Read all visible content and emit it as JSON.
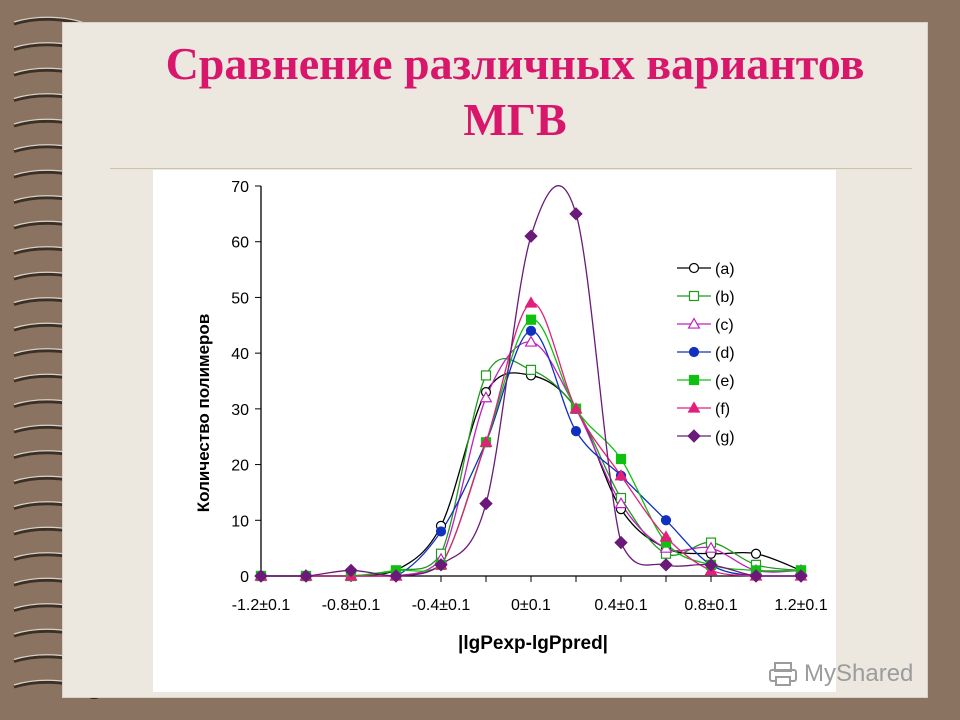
{
  "slide": {
    "title_line1": "Сравнение различных вариантов",
    "title_line2": "МГВ",
    "title_color": "#d8166b",
    "watermark": "MyShared"
  },
  "chart_data": {
    "type": "line",
    "ylabel": "Количество полимеров",
    "xlabel": "|lgPexp-lgPpred|",
    "ylim": [
      0,
      70
    ],
    "y_ticks": [
      0,
      10,
      20,
      30,
      40,
      50,
      60,
      70
    ],
    "x_tick_labels": [
      "-1.2±0.1",
      "-0.8±0.1",
      "-0.4±0.1",
      "0±0.1",
      "0.4±0.1",
      "0.8±0.1",
      "1.2±0.1"
    ],
    "x_tick_values": [
      -1.2,
      -0.8,
      -0.4,
      0,
      0.4,
      0.8,
      1.2
    ],
    "xlim": [
      -1.2,
      1.2
    ],
    "grid": false,
    "legend": "right",
    "x": [
      -1.2,
      -1.0,
      -0.8,
      -0.6,
      -0.4,
      -0.2,
      0,
      0.2,
      0.4,
      0.6,
      0.8,
      1.0,
      1.2
    ],
    "series": [
      {
        "name": "(a)",
        "color": "#000000",
        "marker": "circle",
        "filled": false,
        "values": [
          0,
          0,
          0,
          1,
          9,
          33,
          36,
          30,
          12,
          5,
          4,
          4,
          1
        ]
      },
      {
        "name": "(b)",
        "color": "#1f9a1f",
        "marker": "square",
        "filled": false,
        "values": [
          0,
          0,
          0,
          1,
          4,
          36,
          37,
          30,
          14,
          4,
          6,
          2,
          1
        ]
      },
      {
        "name": "(c)",
        "color": "#c020c0",
        "marker": "triangle",
        "filled": false,
        "values": [
          0,
          0,
          0,
          0,
          3,
          32,
          42,
          30,
          13,
          5,
          5,
          1,
          1
        ]
      },
      {
        "name": "(d)",
        "color": "#1030c0",
        "marker": "circle",
        "filled": true,
        "values": [
          0,
          0,
          0,
          0,
          8,
          24,
          44,
          26,
          18,
          10,
          2,
          0,
          0
        ]
      },
      {
        "name": "(e)",
        "color": "#10c010",
        "marker": "square",
        "filled": true,
        "values": [
          0,
          0,
          0,
          1,
          2,
          24,
          46,
          30,
          21,
          6,
          2,
          1,
          1
        ]
      },
      {
        "name": "(f)",
        "color": "#e0207a",
        "marker": "triangle",
        "filled": true,
        "values": [
          0,
          0,
          0,
          0,
          2,
          24,
          49,
          30,
          18,
          7,
          1,
          0,
          0
        ]
      },
      {
        "name": "(g)",
        "color": "#6a1a78",
        "marker": "diamond",
        "filled": true,
        "values": [
          0,
          0,
          1,
          0,
          2,
          13,
          61,
          65,
          6,
          2,
          2,
          0,
          0
        ]
      }
    ]
  }
}
